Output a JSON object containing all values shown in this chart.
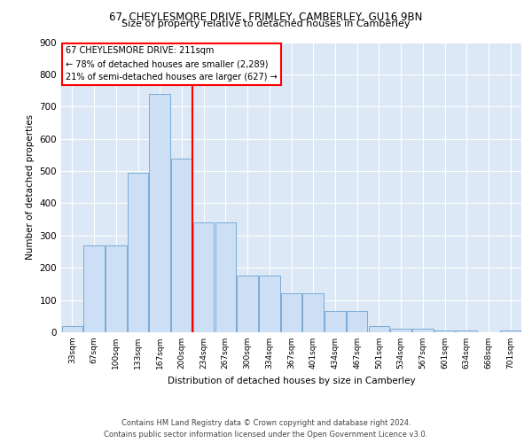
{
  "title_line1": "67, CHEYLESMORE DRIVE, FRIMLEY, CAMBERLEY, GU16 9BN",
  "title_line2": "Size of property relative to detached houses in Camberley",
  "xlabel": "Distribution of detached houses by size in Camberley",
  "ylabel": "Number of detached properties",
  "categories": [
    "33sqm",
    "67sqm",
    "100sqm",
    "133sqm",
    "167sqm",
    "200sqm",
    "234sqm",
    "267sqm",
    "300sqm",
    "334sqm",
    "367sqm",
    "401sqm",
    "434sqm",
    "467sqm",
    "501sqm",
    "534sqm",
    "567sqm",
    "601sqm",
    "634sqm",
    "668sqm",
    "701sqm"
  ],
  "bar_heights": [
    20,
    270,
    270,
    495,
    740,
    540,
    340,
    340,
    175,
    175,
    120,
    120,
    65,
    65,
    20,
    10,
    10,
    5,
    5,
    0,
    5
  ],
  "bar_color": "#ccdff5",
  "bar_edge_color": "#7bacd4",
  "vline_x": 5.5,
  "vline_color": "red",
  "annotation_title": "67 CHEYLESMORE DRIVE: 211sqm",
  "annotation_line1": "← 78% of detached houses are smaller (2,289)",
  "annotation_line2": "21% of semi-detached houses are larger (627) →",
  "annotation_box_color": "white",
  "annotation_box_edge_color": "red",
  "ylim": [
    0,
    900
  ],
  "yticks": [
    0,
    100,
    200,
    300,
    400,
    500,
    600,
    700,
    800,
    900
  ],
  "bg_color": "#dce8f5",
  "footer_line1": "Contains HM Land Registry data © Crown copyright and database right 2024.",
  "footer_line2": "Contains public sector information licensed under the Open Government Licence v3.0."
}
